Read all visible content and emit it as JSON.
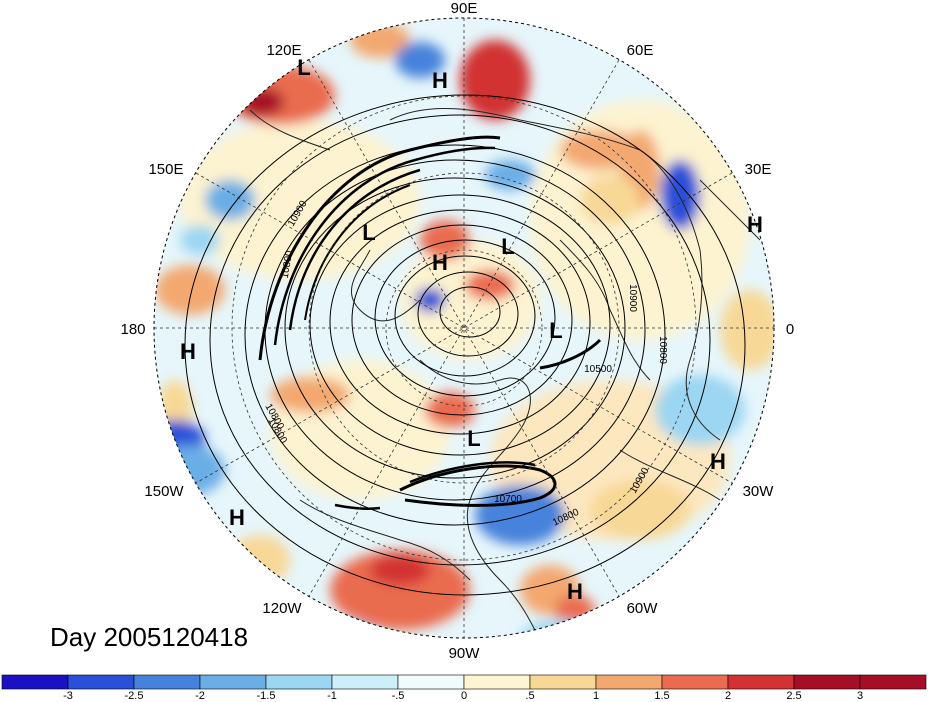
{
  "map": {
    "date_label": "Day 2005120418",
    "longitude_labels": {
      "lon_90e": "90E",
      "lon_60e": "60E",
      "lon_30e": "30E",
      "lon_0": "0",
      "lon_30w": "30W",
      "lon_60w": "60W",
      "lon_90w": "90W",
      "lon_120w": "120W",
      "lon_150w": "150W",
      "lon_180": "180",
      "lon_150e": "150E",
      "lon_120e": "120E"
    },
    "pressure_centers": [
      {
        "type": "L"
      },
      {
        "type": "H"
      },
      {
        "type": "H"
      },
      {
        "type": "L"
      },
      {
        "type": "H"
      },
      {
        "type": "L"
      },
      {
        "type": "L"
      },
      {
        "type": "H"
      },
      {
        "type": "L"
      },
      {
        "type": "H"
      },
      {
        "type": "H"
      },
      {
        "type": "H"
      }
    ],
    "contour_labels": [
      "10900",
      "10800",
      "10900",
      "10800",
      "10800",
      "10500",
      "10700",
      "10800",
      "10900",
      "10800"
    ],
    "colors": {
      "land_outline": "#222222",
      "contour": "#000000",
      "background": "#ffffff"
    }
  },
  "colorbar": {
    "ticks": [
      "-3",
      "-2.5",
      "-2",
      "-1.5",
      "-1",
      "-.5",
      "0",
      ".5",
      "1",
      "1.5",
      "2",
      "2.5",
      "3"
    ],
    "colors": [
      "#1c10c4",
      "#2a4fd8",
      "#4682dc",
      "#6aaee6",
      "#9bd6f2",
      "#cdf0f8",
      "#f0fbfd",
      "#fdf5d2",
      "#f8d896",
      "#f3a86f",
      "#ea6c50",
      "#d23233",
      "#a50f26",
      "#a50f26"
    ]
  }
}
